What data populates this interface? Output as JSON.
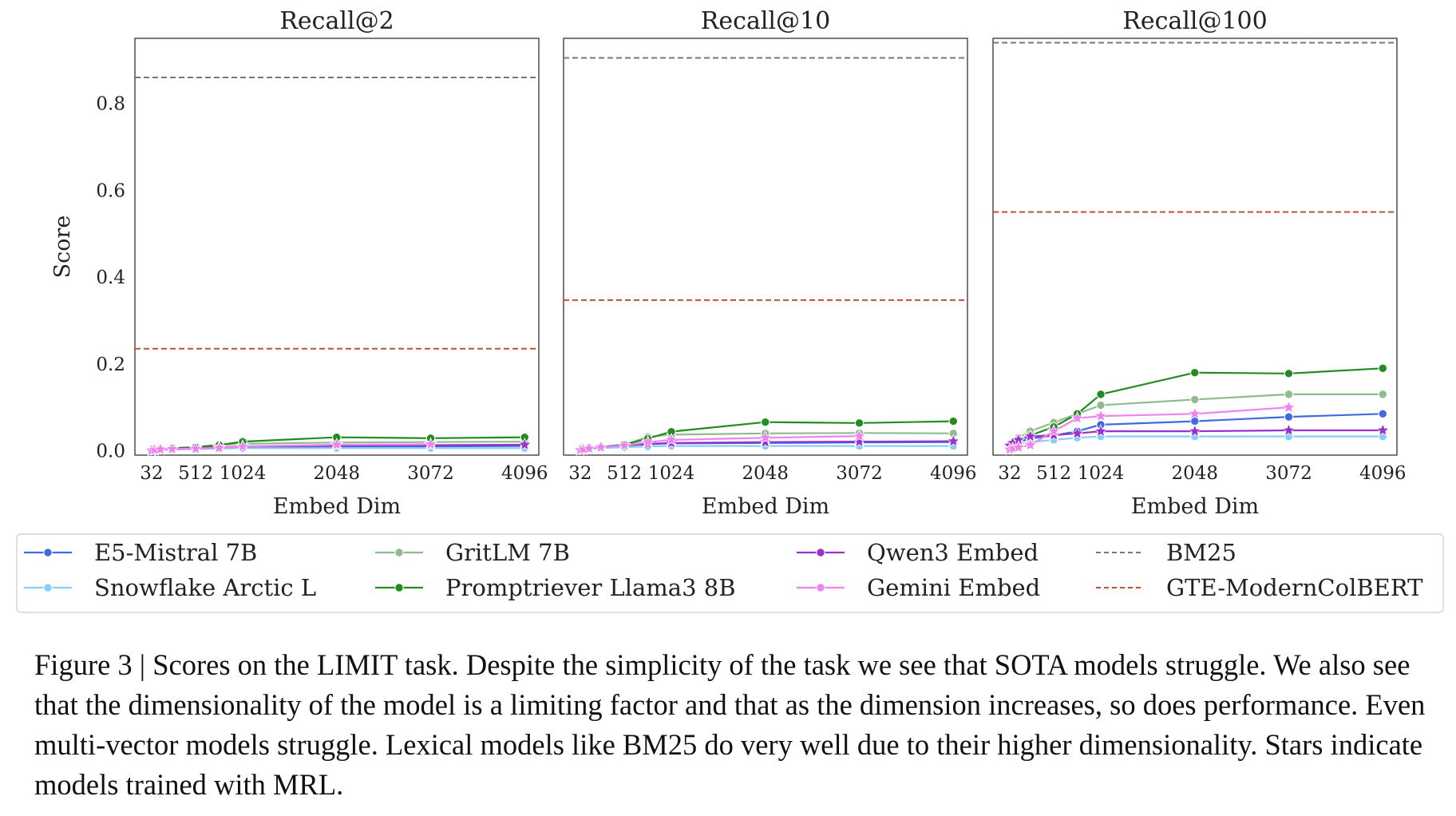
{
  "chart_data": [
    {
      "type": "line",
      "title": "Recall@2",
      "xlabel": "Embed Dim",
      "ylabel": "Score",
      "xticks": [
        "32",
        "512",
        "1024",
        "2048",
        "3072",
        "4096"
      ],
      "yticks": [
        "0.0",
        "0.2",
        "0.4",
        "0.6",
        "0.8"
      ],
      "ylim": [
        -0.01,
        0.95
      ],
      "xlim": [
        -150,
        4250
      ],
      "baselines": [
        {
          "name": "BM25",
          "value": 0.86
        },
        {
          "name": "GTE-ModernColBERT",
          "value": 0.235
        }
      ],
      "series": [
        {
          "name": "E5-Mistral 7B",
          "x": [
            32,
            64,
            128,
            256,
            512,
            768,
            1024,
            2048,
            3072,
            4096
          ],
          "y": [
            0.001,
            0.001,
            0.002,
            0.003,
            0.005,
            0.007,
            0.008,
            0.01,
            0.01,
            0.011
          ]
        },
        {
          "name": "Snowflake Arctic L",
          "x": [
            32,
            64,
            128,
            256,
            512,
            768,
            1024,
            2048,
            3072,
            4096
          ],
          "y": [
            0.001,
            0.001,
            0.002,
            0.003,
            0.004,
            0.005,
            0.006,
            0.006,
            0.006,
            0.006
          ]
        },
        {
          "name": "GritLM 7B",
          "x": [
            32,
            64,
            128,
            256,
            512,
            768,
            1024,
            2048,
            3072,
            4096
          ],
          "y": [
            0.002,
            0.003,
            0.004,
            0.006,
            0.009,
            0.014,
            0.016,
            0.019,
            0.02,
            0.021
          ]
        },
        {
          "name": "Promptriever Llama3 8B",
          "x": [
            32,
            64,
            128,
            256,
            512,
            768,
            1024,
            2048,
            3072,
            4096
          ],
          "y": [
            0.002,
            0.003,
            0.004,
            0.006,
            0.008,
            0.013,
            0.021,
            0.031,
            0.029,
            0.031
          ]
        },
        {
          "name": "Qwen3 Embed",
          "x": [
            32,
            64,
            128,
            256,
            512,
            768,
            1024,
            2048,
            3072,
            4096
          ],
          "y": [
            0.002,
            0.003,
            0.004,
            0.005,
            0.006,
            0.008,
            0.01,
            0.012,
            0.013,
            0.014
          ]
        },
        {
          "name": "Gemini Embed",
          "x": [
            32,
            64,
            128,
            256,
            512,
            768,
            1024,
            2048,
            3072
          ],
          "y": [
            0.001,
            0.002,
            0.003,
            0.004,
            0.005,
            0.007,
            0.01,
            0.014,
            0.015
          ]
        }
      ]
    },
    {
      "type": "line",
      "title": "Recall@10",
      "xlabel": "Embed Dim",
      "ylabel": "",
      "xticks": [
        "32",
        "512",
        "1024",
        "2048",
        "3072",
        "4096"
      ],
      "ylim": [
        -0.01,
        0.95
      ],
      "xlim": [
        -150,
        4250
      ],
      "baselines": [
        {
          "name": "BM25",
          "value": 0.905
        },
        {
          "name": "GTE-ModernColBERT",
          "value": 0.347
        }
      ],
      "series": [
        {
          "name": "E5-Mistral 7B",
          "x": [
            32,
            64,
            128,
            256,
            512,
            768,
            1024,
            2048,
            3072,
            4096
          ],
          "y": [
            0.002,
            0.003,
            0.005,
            0.008,
            0.012,
            0.015,
            0.017,
            0.018,
            0.019,
            0.02
          ]
        },
        {
          "name": "Snowflake Arctic L",
          "x": [
            32,
            64,
            128,
            256,
            512,
            768,
            1024,
            2048,
            3072,
            4096
          ],
          "y": [
            0.001,
            0.002,
            0.004,
            0.006,
            0.008,
            0.01,
            0.011,
            0.011,
            0.011,
            0.011
          ]
        },
        {
          "name": "GritLM 7B",
          "x": [
            32,
            64,
            128,
            256,
            512,
            768,
            1024,
            2048,
            3072,
            4096
          ],
          "y": [
            0.003,
            0.004,
            0.006,
            0.009,
            0.014,
            0.032,
            0.037,
            0.04,
            0.041,
            0.04
          ]
        },
        {
          "name": "Promptriever Llama3 8B",
          "x": [
            32,
            64,
            128,
            256,
            512,
            768,
            1024,
            2048,
            3072,
            4096
          ],
          "y": [
            0.003,
            0.004,
            0.006,
            0.009,
            0.014,
            0.028,
            0.044,
            0.066,
            0.064,
            0.068
          ]
        },
        {
          "name": "Qwen3 Embed",
          "x": [
            32,
            64,
            128,
            256,
            512,
            768,
            1024,
            2048,
            3072,
            4096
          ],
          "y": [
            0.003,
            0.004,
            0.006,
            0.009,
            0.012,
            0.016,
            0.018,
            0.02,
            0.021,
            0.022
          ]
        },
        {
          "name": "Gemini Embed",
          "x": [
            32,
            64,
            128,
            256,
            512,
            768,
            1024,
            2048,
            3072
          ],
          "y": [
            0.002,
            0.003,
            0.005,
            0.008,
            0.012,
            0.02,
            0.025,
            0.03,
            0.034
          ]
        }
      ]
    },
    {
      "type": "line",
      "title": "Recall@100",
      "xlabel": "Embed Dim",
      "ylabel": "",
      "xticks": [
        "32",
        "512",
        "1024",
        "2048",
        "3072",
        "4096"
      ],
      "ylim": [
        -0.01,
        0.95
      ],
      "xlim": [
        -150,
        4250
      ],
      "baselines": [
        {
          "name": "BM25",
          "value": 0.94
        },
        {
          "name": "GTE-ModernColBERT",
          "value": 0.55
        }
      ],
      "series": [
        {
          "name": "E5-Mistral 7B",
          "x": [
            32,
            64,
            128,
            256,
            512,
            768,
            1024,
            2048,
            3072,
            4096
          ],
          "y": [
            0.012,
            0.015,
            0.02,
            0.028,
            0.035,
            0.045,
            0.06,
            0.068,
            0.078,
            0.085
          ]
        },
        {
          "name": "Snowflake Arctic L",
          "x": [
            32,
            64,
            128,
            256,
            512,
            768,
            1024,
            2048,
            3072,
            4096
          ],
          "y": [
            0.01,
            0.013,
            0.016,
            0.02,
            0.025,
            0.03,
            0.033,
            0.033,
            0.033,
            0.033
          ]
        },
        {
          "name": "GritLM 7B",
          "x": [
            32,
            64,
            128,
            256,
            512,
            768,
            1024,
            2048,
            3072,
            4096
          ],
          "y": [
            0.014,
            0.02,
            0.03,
            0.045,
            0.065,
            0.085,
            0.105,
            0.118,
            0.13,
            0.13
          ]
        },
        {
          "name": "Promptriever Llama3 8B",
          "x": [
            32,
            64,
            128,
            256,
            512,
            768,
            1024,
            2048,
            3072,
            4096
          ],
          "y": [
            0.012,
            0.018,
            0.025,
            0.035,
            0.055,
            0.085,
            0.13,
            0.18,
            0.178,
            0.19
          ]
        },
        {
          "name": "Qwen3 Embed",
          "x": [
            32,
            64,
            128,
            256,
            512,
            768,
            1024,
            2048,
            3072,
            4096
          ],
          "y": [
            0.012,
            0.018,
            0.025,
            0.033,
            0.036,
            0.04,
            0.045,
            0.045,
            0.047,
            0.047
          ]
        },
        {
          "name": "Gemini Embed",
          "x": [
            32,
            64,
            128,
            256,
            512,
            768,
            1024,
            2048,
            3072
          ],
          "y": [
            0.003,
            0.005,
            0.008,
            0.013,
            0.045,
            0.075,
            0.08,
            0.085,
            0.1
          ]
        }
      ]
    }
  ],
  "legend": [
    {
      "name": "E5-Mistral 7B",
      "color": "#4169e1",
      "style": "line-dot"
    },
    {
      "name": "Snowflake Arctic L",
      "color": "#87cefa",
      "style": "line-dot"
    },
    {
      "name": "GritLM 7B",
      "color": "#8fbc8f",
      "style": "line-dot"
    },
    {
      "name": "Promptriever Llama3 8B",
      "color": "#228b22",
      "style": "line-dot"
    },
    {
      "name": "Qwen3 Embed",
      "color": "#9932cc",
      "style": "line-dot"
    },
    {
      "name": "Gemini Embed",
      "color": "#ee82ee",
      "style": "line-dot"
    },
    {
      "name": "BM25",
      "color": "#777777",
      "style": "dashed"
    },
    {
      "name": "GTE-ModernColBERT",
      "color": "#c0522e",
      "style": "dashed"
    }
  ],
  "mrl_models": [
    "Qwen3 Embed",
    "Gemini Embed"
  ],
  "caption": "Figure 3 | Scores on the LIMIT task. Despite the simplicity of the task we see that SOTA models struggle. We also see that the dimensionality of the model is a limiting factor and that as the dimension increases, so does performance. Even multi-vector models struggle. Lexical models like BM25 do very well due to their higher dimensionality. Stars indicate models trained with MRL."
}
